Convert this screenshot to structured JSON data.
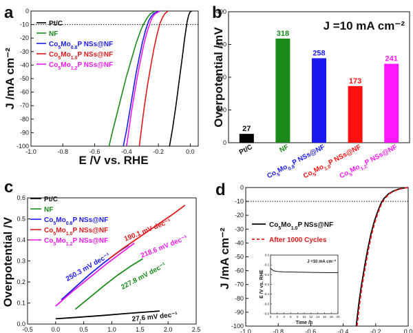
{
  "chart_data": [
    {
      "panel": "a",
      "type": "line",
      "xlabel": "E /V vs. RHE",
      "ylabel": "J /mA cm⁻²",
      "xlim": [
        -1.0,
        0.05
      ],
      "ylim": [
        -100,
        0
      ],
      "xticks": [
        "-1.0",
        "-0.8",
        "-0.6",
        "-0.4",
        "-0.2",
        "0.0"
      ],
      "yticks": [
        "0",
        "-10",
        "-20",
        "-30",
        "-40",
        "-50",
        "-60",
        "-70",
        "-80",
        "-90",
        "-100"
      ],
      "reference_line": -10,
      "legend_position": "top-left",
      "series": [
        {
          "name": "Pt/C",
          "color": "#000000",
          "x": [
            -0.13,
            -0.11,
            -0.09,
            -0.07,
            -0.05,
            -0.035,
            -0.02,
            -0.01,
            0.0,
            0.01
          ],
          "y": [
            -100,
            -86,
            -70,
            -52,
            -34,
            -20,
            -8,
            -3,
            -0.5,
            0
          ]
        },
        {
          "name": "NF",
          "color": "#1a8a1a",
          "x": [
            -0.51,
            -0.49,
            -0.46,
            -0.43,
            -0.4,
            -0.37,
            -0.34,
            -0.31,
            -0.29,
            -0.27,
            -0.25,
            -0.22
          ],
          "y": [
            -100,
            -90,
            -76,
            -62,
            -48,
            -36,
            -24,
            -14,
            -9,
            -5,
            -2,
            0
          ]
        },
        {
          "name": "Co5Mo0.8P NSs@NF",
          "color": "#1a1aee",
          "x": [
            -0.42,
            -0.4,
            -0.38,
            -0.36,
            -0.34,
            -0.32,
            -0.3,
            -0.28,
            -0.26,
            -0.245,
            -0.23,
            -0.2
          ],
          "y": [
            -100,
            -88,
            -74,
            -60,
            -46,
            -34,
            -23,
            -14,
            -7,
            -4,
            -2,
            0
          ]
        },
        {
          "name": "Co5Mo1.0P NSs@NF",
          "color": "#e01818",
          "x": [
            -0.32,
            -0.305,
            -0.29,
            -0.27,
            -0.25,
            -0.23,
            -0.21,
            -0.19,
            -0.175,
            -0.16,
            -0.14
          ],
          "y": [
            -100,
            -86,
            -72,
            -56,
            -42,
            -29,
            -18,
            -9,
            -5,
            -2,
            0
          ]
        },
        {
          "name": "Co5Mo1.2P NSs@NF",
          "color": "#ee18ee",
          "x": [
            -0.4,
            -0.385,
            -0.37,
            -0.35,
            -0.33,
            -0.31,
            -0.29,
            -0.27,
            -0.25,
            -0.24,
            -0.22,
            -0.19
          ],
          "y": [
            -100,
            -88,
            -75,
            -61,
            -47,
            -35,
            -24,
            -15,
            -8,
            -5,
            -2,
            0
          ]
        }
      ]
    },
    {
      "panel": "b",
      "type": "bar",
      "title": "J =10 mA cm⁻²",
      "ylabel": "Overpotential /mV",
      "ylim": [
        0,
        400
      ],
      "yticks": [
        "0",
        "100",
        "200",
        "300",
        "400"
      ],
      "categories": [
        "Pt/C",
        "NF",
        "Co5Mo0.8P NSs@NF",
        "Co5Mo1.0P NSs@NF",
        "Co5Mo1.2P NSs@NF"
      ],
      "values": [
        27,
        318,
        258,
        173,
        241
      ],
      "colors": [
        "#000000",
        "#1a8a1a",
        "#1a1aee",
        "#ff1010",
        "#ff18ff"
      ]
    },
    {
      "panel": "c",
      "type": "line",
      "xlabel": "",
      "ylabel": "Overpotential /V",
      "xlim": [
        -0.5,
        2.5
      ],
      "ylim": [
        0,
        0.6
      ],
      "xticks": [
        "-0.5",
        "0.0",
        "0.5",
        "1.0",
        "1.5",
        "2.0",
        "2.5"
      ],
      "yticks": [
        "0.0",
        "0.1",
        "0.2",
        "0.3",
        "0.4",
        "0.5",
        "0.6"
      ],
      "legend_position": "top-left",
      "series": [
        {
          "name": "Pt/C",
          "color": "#000000",
          "x": [
            0.0,
            0.4,
            0.8,
            1.2,
            1.6,
            1.85
          ],
          "y": [
            0.025,
            0.032,
            0.04,
            0.049,
            0.057,
            0.062
          ],
          "slope_label": "27.6 mV dec⁻¹"
        },
        {
          "name": "NF",
          "color": "#1a8a1a",
          "x": [
            0.35,
            0.6,
            0.85,
            1.1,
            1.35,
            1.55
          ],
          "y": [
            0.07,
            0.125,
            0.18,
            0.232,
            0.278,
            0.31
          ],
          "slope_label": "227.8 mV dec⁻¹"
        },
        {
          "name": "Co5Mo0.8P NSs@NF",
          "color": "#1a1aee",
          "x": [
            0.1,
            0.35,
            0.6,
            0.85,
            1.1,
            1.3
          ],
          "y": [
            0.115,
            0.175,
            0.235,
            0.29,
            0.34,
            0.375
          ],
          "slope_label": "250.3 mV dec⁻¹"
        },
        {
          "name": "Co5Mo1.0P NSs@NF",
          "color": "#e01818",
          "x": [
            0.95,
            1.2,
            1.5,
            1.8,
            2.1,
            2.3
          ],
          "y": [
            0.31,
            0.36,
            0.415,
            0.47,
            0.525,
            0.565
          ],
          "slope_label": "190.1 mV dec⁻¹"
        },
        {
          "name": "Co5Mo1.2P NSs@NF",
          "color": "#ee18ee",
          "x": [
            0.0,
            0.3,
            0.6,
            0.9,
            1.2,
            1.4
          ],
          "y": [
            0.085,
            0.155,
            0.22,
            0.285,
            0.345,
            0.385
          ],
          "slope_label": "218.6 mV dec⁻¹"
        }
      ]
    },
    {
      "panel": "d",
      "type": "line",
      "xlabel": "",
      "ylabel": "J /mA cm⁻²",
      "xlim": [
        -1.0,
        0.0
      ],
      "ylim": [
        -100,
        0
      ],
      "xticks": [
        "-1.0",
        "-0.8",
        "-0.6",
        "-0.4",
        "-0.2",
        "0.0"
      ],
      "yticks": [
        "0",
        "-10",
        "-20",
        "-30",
        "-40",
        "-50",
        "-60",
        "-70",
        "-80",
        "-90",
        "-100"
      ],
      "reference_line": -10,
      "legend_position": "top-left",
      "series": [
        {
          "name": "Co5Mo1.0P NSs@NF",
          "color": "#000000",
          "style": "solid",
          "x": [
            -0.32,
            -0.305,
            -0.29,
            -0.27,
            -0.25,
            -0.23,
            -0.21,
            -0.19,
            -0.17,
            -0.15,
            -0.12,
            -0.09,
            -0.06,
            -0.03,
            0.0
          ],
          "y": [
            -100,
            -85,
            -72,
            -58,
            -45,
            -34,
            -25,
            -18,
            -12,
            -8,
            -4.5,
            -2.5,
            -1.2,
            -0.4,
            0
          ]
        },
        {
          "name": "After 1000 Cycles",
          "color": "#e01818",
          "style": "dashed",
          "x": [
            -0.315,
            -0.3,
            -0.285,
            -0.265,
            -0.245,
            -0.225,
            -0.205,
            -0.185,
            -0.165,
            -0.145,
            -0.115,
            -0.085,
            -0.055,
            -0.025,
            0.0
          ],
          "y": [
            -100,
            -85,
            -72,
            -58,
            -45,
            -34,
            -25,
            -18,
            -12,
            -8,
            -4.5,
            -2.5,
            -1.2,
            -0.4,
            0
          ]
        }
      ],
      "inset": {
        "title": "J =10 mA cm⁻²",
        "xlabel": "Time /h",
        "ylabel": "E /V vs. RHE",
        "xticks": [
          "0",
          "2",
          "4",
          "6",
          "8",
          "10",
          "12",
          "14",
          "16",
          "18",
          "20"
        ],
        "yticks": [
          "0.0",
          "-0.1",
          "-0.2",
          "-0.3",
          "-0.4",
          "-0.5",
          "-0.6"
        ],
        "xlim": [
          0,
          20
        ],
        "ylim": [
          -0.6,
          0.0
        ],
        "x": [
          0,
          0.5,
          1,
          2,
          4,
          6,
          8,
          10,
          12,
          14,
          16,
          18,
          20
        ],
        "y": [
          -0.135,
          -0.15,
          -0.162,
          -0.168,
          -0.172,
          -0.173,
          -0.175,
          -0.176,
          -0.177,
          -0.178,
          -0.179,
          -0.18,
          -0.18
        ]
      }
    }
  ]
}
